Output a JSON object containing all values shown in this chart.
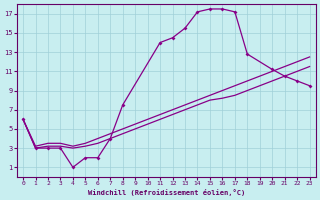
{
  "xlabel": "Windchill (Refroidissement éolien,°C)",
  "xlim": [
    -0.5,
    23.5
  ],
  "ylim": [
    0,
    18
  ],
  "xticks": [
    0,
    1,
    2,
    3,
    4,
    5,
    6,
    7,
    8,
    9,
    10,
    11,
    12,
    13,
    14,
    15,
    16,
    17,
    18,
    19,
    20,
    21,
    22,
    23
  ],
  "yticks": [
    1,
    3,
    5,
    7,
    9,
    11,
    13,
    15,
    17
  ],
  "bg_color": "#c8eef0",
  "grid_color": "#a0d0d8",
  "line_color": "#880088",
  "curve1_x": [
    0,
    1,
    2,
    3,
    4,
    5,
    6,
    7,
    8,
    11,
    12,
    13,
    14,
    15,
    16,
    17,
    18,
    20,
    21,
    22,
    23
  ],
  "curve1_y": [
    6,
    3,
    3,
    3,
    1,
    2,
    2,
    4,
    7.5,
    14,
    14.5,
    15.5,
    17.2,
    17.5,
    17.5,
    17.2,
    12.8,
    11.2,
    10.5,
    10.0,
    9.5
  ],
  "curve2_x": [
    0,
    1,
    2,
    3,
    4,
    5,
    6,
    7,
    8,
    9,
    10,
    11,
    12,
    13,
    14,
    15,
    16,
    17,
    18,
    19,
    20,
    21,
    22,
    23
  ],
  "curve2_y": [
    6,
    3.2,
    3.5,
    3.5,
    3.2,
    3.5,
    4.0,
    4.5,
    5.0,
    5.5,
    6.0,
    6.5,
    7.0,
    7.5,
    8.0,
    8.5,
    9.0,
    9.5,
    10.0,
    10.5,
    11.0,
    11.5,
    12.0,
    12.5
  ],
  "curve3_x": [
    0,
    1,
    2,
    3,
    4,
    5,
    6,
    7,
    8,
    9,
    10,
    11,
    12,
    13,
    14,
    15,
    16,
    17,
    18,
    19,
    20,
    21,
    22,
    23
  ],
  "curve3_y": [
    6,
    3,
    3.2,
    3.2,
    3.0,
    3.2,
    3.5,
    4.0,
    4.5,
    5.0,
    5.5,
    6.0,
    6.5,
    7.0,
    7.5,
    8.0,
    8.2,
    8.5,
    9.0,
    9.5,
    10.0,
    10.5,
    11.0,
    11.5
  ]
}
